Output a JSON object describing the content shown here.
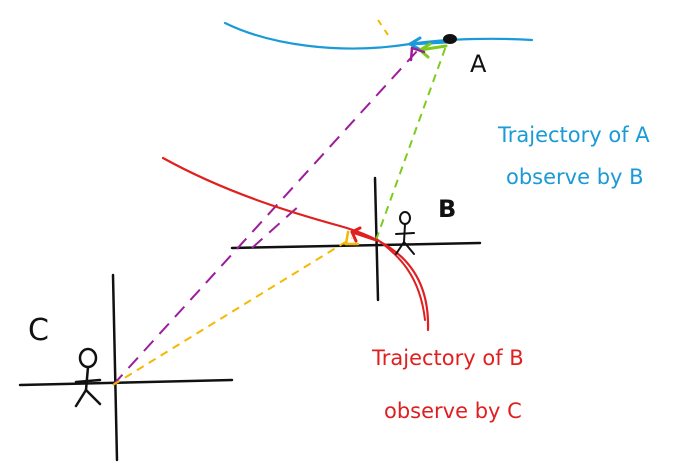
{
  "labels": {
    "point_a": "A",
    "point_b": "B",
    "point_c": "C",
    "caption_a_line1": "Trajectory of A",
    "caption_a_line2": "observe by B",
    "caption_b_line1": "Trajectory of B",
    "caption_b_line2": "observe by C"
  },
  "colors": {
    "axes": "#111111",
    "trajectory_a": "#1a9ad6",
    "trajectory_b": "#e02020",
    "green": "#7ccc1c",
    "purple": "#9b1d9b",
    "yellow": "#f5b800",
    "stick_figure": "#111111"
  }
}
